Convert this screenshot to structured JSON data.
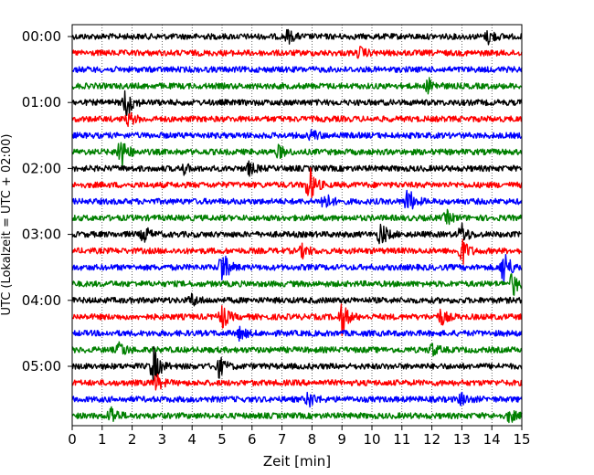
{
  "chart_data": {
    "type": "line",
    "title": "",
    "xlabel": "Zeit  [min]",
    "ylabel": "UTC (Lokalzeit = UTC + 02:00)",
    "xlim": [
      0,
      15
    ],
    "x_ticks": [
      "0",
      "1",
      "2",
      "3",
      "4",
      "5",
      "6",
      "7",
      "8",
      "9",
      "10",
      "11",
      "12",
      "13",
      "14",
      "15"
    ],
    "y_ticks": [
      {
        "label": "00:00",
        "row": 0
      },
      {
        "label": "01:00",
        "row": 4
      },
      {
        "label": "02:00",
        "row": 8
      },
      {
        "label": "03:00",
        "row": 12
      },
      {
        "label": "04:00",
        "row": 16
      },
      {
        "label": "05:00",
        "row": 20
      }
    ],
    "minutes_per_trace": 15,
    "trace_colors": [
      "#000000",
      "#ff0000",
      "#0000ff",
      "#008000"
    ],
    "vertical_grid": "dotted",
    "traces": [
      {
        "start": "00:00",
        "events": [
          {
            "t": 7.2,
            "amp": 0.3
          },
          {
            "t": 13.9,
            "amp": 0.35
          }
        ]
      },
      {
        "start": "00:15",
        "events": [
          {
            "t": 9.6,
            "amp": 0.25
          }
        ]
      },
      {
        "start": "00:30",
        "events": []
      },
      {
        "start": "00:45",
        "events": [
          {
            "t": 11.9,
            "amp": 0.35
          }
        ]
      },
      {
        "start": "01:00",
        "events": [
          {
            "t": 1.8,
            "amp": 0.8
          }
        ]
      },
      {
        "start": "01:15",
        "events": [
          {
            "t": 1.9,
            "amp": 0.3
          }
        ]
      },
      {
        "start": "01:30",
        "events": [
          {
            "t": 8.0,
            "amp": 0.25
          }
        ]
      },
      {
        "start": "01:45",
        "events": [
          {
            "t": 1.6,
            "amp": 1.0
          },
          {
            "t": 6.9,
            "amp": 0.3
          }
        ]
      },
      {
        "start": "02:00",
        "events": [
          {
            "t": 3.7,
            "amp": 0.25
          },
          {
            "t": 5.9,
            "amp": 0.3
          }
        ]
      },
      {
        "start": "02:15",
        "events": [
          {
            "t": 7.9,
            "amp": 1.0
          }
        ]
      },
      {
        "start": "02:30",
        "events": [
          {
            "t": 8.4,
            "amp": 0.5
          },
          {
            "t": 11.2,
            "amp": 0.7
          }
        ]
      },
      {
        "start": "02:45",
        "events": [
          {
            "t": 12.5,
            "amp": 0.3
          }
        ]
      },
      {
        "start": "03:00",
        "events": [
          {
            "t": 2.4,
            "amp": 0.4
          },
          {
            "t": 10.3,
            "amp": 0.6
          },
          {
            "t": 13.0,
            "amp": 0.5
          }
        ]
      },
      {
        "start": "03:15",
        "events": [
          {
            "t": 7.7,
            "amp": 0.3
          },
          {
            "t": 13.0,
            "amp": 0.7
          }
        ]
      },
      {
        "start": "03:30",
        "events": [
          {
            "t": 5.0,
            "amp": 0.9
          },
          {
            "t": 14.4,
            "amp": 1.0
          }
        ]
      },
      {
        "start": "03:45",
        "events": [
          {
            "t": 14.7,
            "amp": 0.6
          }
        ]
      },
      {
        "start": "04:00",
        "events": [
          {
            "t": 4.0,
            "amp": 0.3
          }
        ]
      },
      {
        "start": "04:15",
        "events": [
          {
            "t": 5.0,
            "amp": 0.6
          },
          {
            "t": 9.0,
            "amp": 0.8
          },
          {
            "t": 12.3,
            "amp": 0.4
          }
        ]
      },
      {
        "start": "04:30",
        "events": [
          {
            "t": 5.6,
            "amp": 0.3
          }
        ]
      },
      {
        "start": "04:45",
        "events": [
          {
            "t": 1.6,
            "amp": 0.4
          },
          {
            "t": 12.0,
            "amp": 0.3
          }
        ]
      },
      {
        "start": "05:00",
        "events": [
          {
            "t": 2.7,
            "amp": 1.0
          },
          {
            "t": 4.9,
            "amp": 0.5
          }
        ]
      },
      {
        "start": "05:15",
        "events": [
          {
            "t": 2.8,
            "amp": 0.4
          }
        ]
      },
      {
        "start": "05:30",
        "events": [
          {
            "t": 7.9,
            "amp": 0.4
          },
          {
            "t": 13.0,
            "amp": 0.3
          }
        ]
      },
      {
        "start": "05:45",
        "events": [
          {
            "t": 1.3,
            "amp": 0.5
          },
          {
            "t": 14.6,
            "amp": 0.3
          }
        ]
      }
    ]
  }
}
